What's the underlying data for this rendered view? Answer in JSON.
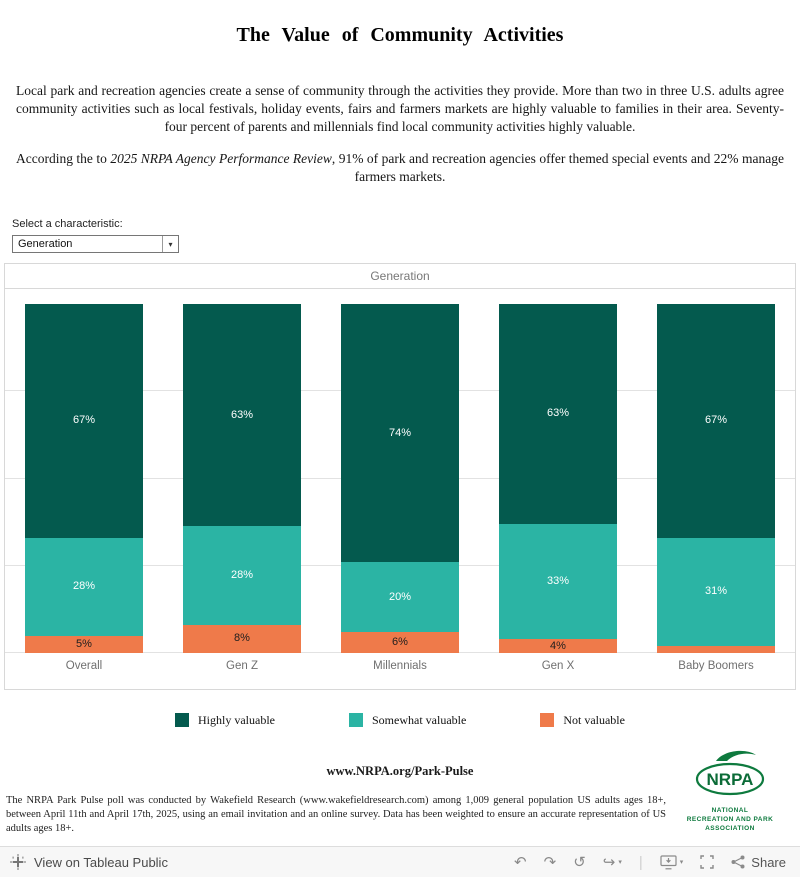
{
  "page": {
    "title": "The Value of Community Activities"
  },
  "intro": {
    "paragraph1": "Local park and recreation agencies create a sense of community through the activities they provide. More than two in three U.S. adults agree community activities such as local festivals, holiday events, fairs and farmers markets are highly valuable to families in their area. Seventy-four percent of parents and millennials find local community activities highly valuable.",
    "paragraph2_prefix": "According the to ",
    "paragraph2_italic": "2025 NRPA Agency Performance Review",
    "paragraph2_suffix": ", 91% of park and recreation agencies offer themed special events and 22% manage farmers markets."
  },
  "selector": {
    "label": "Select a characteristic:",
    "value": "Generation",
    "caret": "▾"
  },
  "chart_data": {
    "type": "bar",
    "stacked": true,
    "percent_of_whole": true,
    "header": "Generation",
    "categories": [
      "Overall",
      "Gen Z",
      "Millennials",
      "Gen X",
      "Baby Boomers"
    ],
    "series": [
      {
        "name": "Highly valuable",
        "color": "#045a4e",
        "label_color": "#ffffff",
        "values": [
          67,
          63,
          74,
          63,
          67
        ],
        "labels": [
          "67%",
          "63%",
          "74%",
          "63%",
          "67%"
        ]
      },
      {
        "name": "Somewhat valuable",
        "color": "#2bb4a4",
        "label_color": "#ffffff",
        "values": [
          28,
          28,
          20,
          33,
          31
        ],
        "labels": [
          "28%",
          "28%",
          "20%",
          "33%",
          "31%"
        ]
      },
      {
        "name": "Not valuable",
        "color": "#ef7a4a",
        "label_color": "#1e1e1e",
        "values": [
          5,
          8,
          6,
          4,
          2
        ],
        "labels": [
          "5%",
          "8%",
          "6%",
          "4%",
          ""
        ]
      }
    ],
    "ylim": [
      0,
      100
    ],
    "gridlines": [
      0,
      25,
      50,
      75
    ],
    "legend_position": "bottom"
  },
  "legend": {
    "items": [
      {
        "label": "Highly valuable",
        "color": "#045a4e"
      },
      {
        "label": "Somewhat valuable",
        "color": "#2bb4a4"
      },
      {
        "label": "Not valuable",
        "color": "#ef7a4a"
      }
    ]
  },
  "footer": {
    "link": "www.NRPA.org/Park-Pulse",
    "disclaimer": "The NRPA Park Pulse poll was conducted by Wakefield Research (www.wakefieldresearch.com) among 1,009 general population US adults ages 18+, between April 11th and April 17th, 2025, using an email invitation and an online survey. Data has been weighted to ensure an accurate representation of US adults ages 18+."
  },
  "logo": {
    "acronym": "NRPA",
    "line1": "NATIONAL",
    "line2": "RECREATION AND PARK",
    "line3": "ASSOCIATION",
    "color": "#0e7a3e"
  },
  "toolbar": {
    "view_label": "View on Tableau Public",
    "share_label": "Share",
    "icons": {
      "undo": "↶",
      "redo": "↷",
      "reset": "↺",
      "replay": "↪",
      "caret": "▾",
      "separator": "|"
    }
  }
}
